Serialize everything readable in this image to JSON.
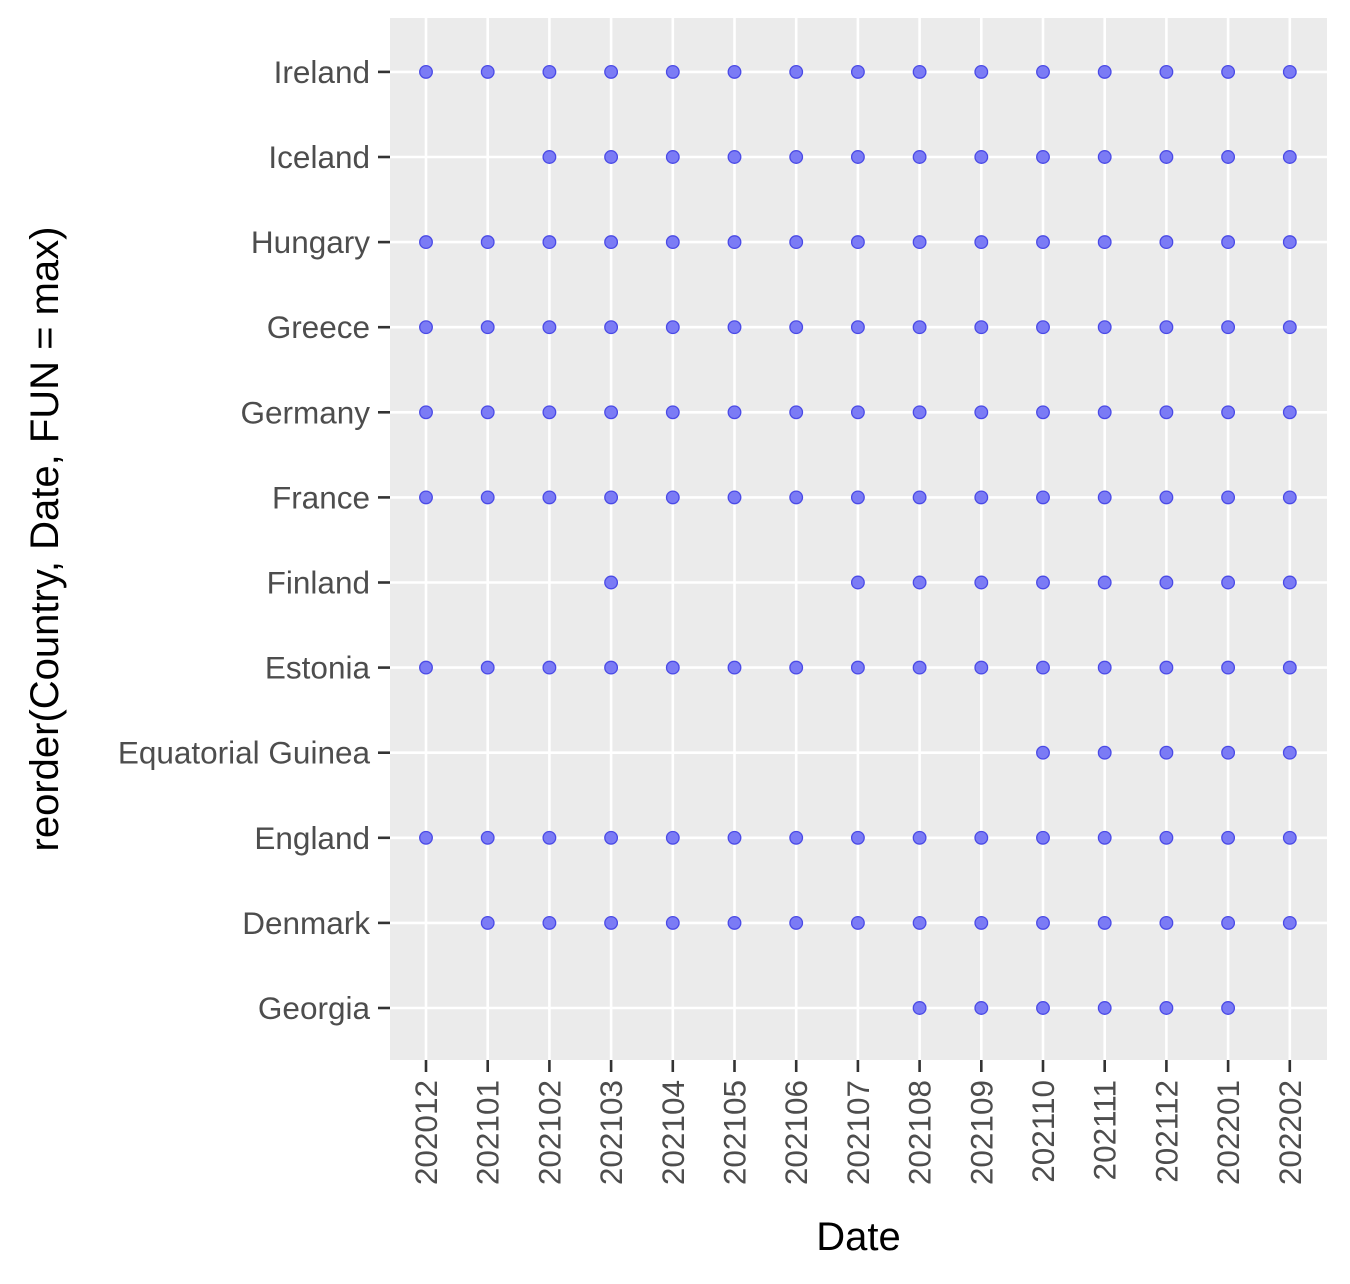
{
  "chart_data": {
    "type": "scatter",
    "title": "",
    "xlabel": "Date",
    "ylabel": "reorder(Country, Date, FUN = max)",
    "x_categories": [
      "202012",
      "202101",
      "202102",
      "202103",
      "202104",
      "202105",
      "202106",
      "202107",
      "202108",
      "202109",
      "202110",
      "202111",
      "202112",
      "202201",
      "202202"
    ],
    "y_categories": [
      "Georgia",
      "Denmark",
      "England",
      "Equatorial Guinea",
      "Estonia",
      "Finland",
      "France",
      "Germany",
      "Greece",
      "Hungary",
      "Iceland",
      "Ireland"
    ],
    "points": {
      "Ireland": [
        "202012",
        "202101",
        "202102",
        "202103",
        "202104",
        "202105",
        "202106",
        "202107",
        "202108",
        "202109",
        "202110",
        "202111",
        "202112",
        "202201",
        "202202"
      ],
      "Iceland": [
        "202102",
        "202103",
        "202104",
        "202105",
        "202106",
        "202107",
        "202108",
        "202109",
        "202110",
        "202111",
        "202112",
        "202201",
        "202202"
      ],
      "Hungary": [
        "202012",
        "202101",
        "202102",
        "202103",
        "202104",
        "202105",
        "202106",
        "202107",
        "202108",
        "202109",
        "202110",
        "202111",
        "202112",
        "202201",
        "202202"
      ],
      "Greece": [
        "202012",
        "202101",
        "202102",
        "202103",
        "202104",
        "202105",
        "202106",
        "202107",
        "202108",
        "202109",
        "202110",
        "202111",
        "202112",
        "202201",
        "202202"
      ],
      "Germany": [
        "202012",
        "202101",
        "202102",
        "202103",
        "202104",
        "202105",
        "202106",
        "202107",
        "202108",
        "202109",
        "202110",
        "202111",
        "202112",
        "202201",
        "202202"
      ],
      "France": [
        "202012",
        "202101",
        "202102",
        "202103",
        "202104",
        "202105",
        "202106",
        "202107",
        "202108",
        "202109",
        "202110",
        "202111",
        "202112",
        "202201",
        "202202"
      ],
      "Finland": [
        "202103",
        "202107",
        "202108",
        "202109",
        "202110",
        "202111",
        "202112",
        "202201",
        "202202"
      ],
      "Estonia": [
        "202012",
        "202101",
        "202102",
        "202103",
        "202104",
        "202105",
        "202106",
        "202107",
        "202108",
        "202109",
        "202110",
        "202111",
        "202112",
        "202201",
        "202202"
      ],
      "Equatorial Guinea": [
        "202110",
        "202111",
        "202112",
        "202201",
        "202202"
      ],
      "England": [
        "202012",
        "202101",
        "202102",
        "202103",
        "202104",
        "202105",
        "202106",
        "202107",
        "202108",
        "202109",
        "202110",
        "202111",
        "202112",
        "202201",
        "202202"
      ],
      "Denmark": [
        "202101",
        "202102",
        "202103",
        "202104",
        "202105",
        "202106",
        "202107",
        "202108",
        "202109",
        "202110",
        "202111",
        "202112",
        "202201",
        "202202"
      ],
      "Georgia": [
        "202108",
        "202109",
        "202110",
        "202111",
        "202112",
        "202201"
      ]
    },
    "grid": true,
    "legend": "none",
    "colors": {
      "panel_background": "#ebebeb",
      "grid_line": "#ffffff",
      "point_fill": "#7b7bf5",
      "point_stroke": "#4a4ae6",
      "tick_label": "#4d4d4d",
      "tick_mark": "#333333",
      "axis_title": "#000000"
    }
  }
}
